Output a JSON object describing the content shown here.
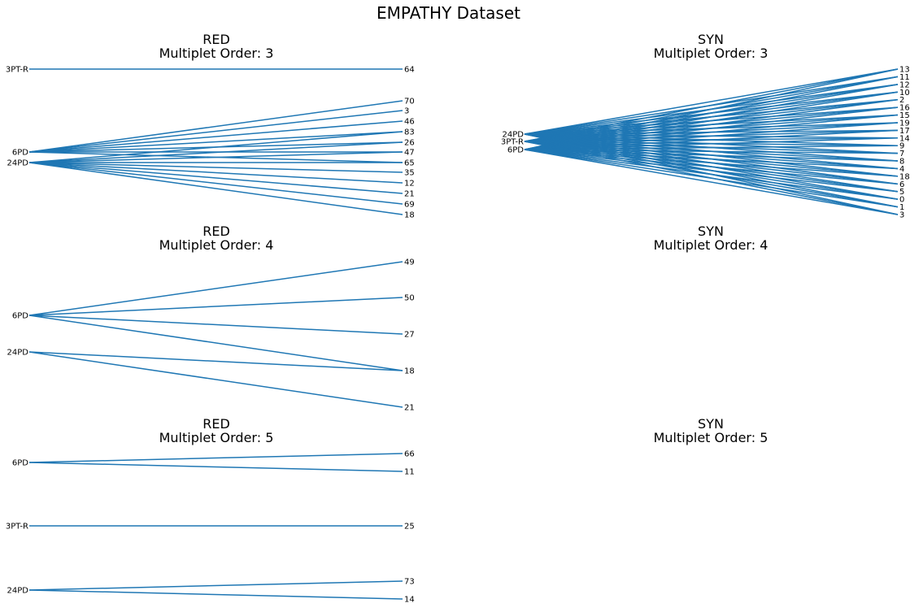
{
  "title": "EMPATHY Dataset",
  "colors": {
    "edge": "#1f77b4"
  },
  "panels": [
    {
      "id": "red-3",
      "label": "RED",
      "subtitle": "Multiplet Order: 3",
      "sources": [
        "3PT-R",
        "6PD",
        "24PD"
      ],
      "targets": [
        "64",
        "70",
        "3",
        "46",
        "83",
        "26",
        "47",
        "65",
        "35",
        "12",
        "21",
        "69",
        "18"
      ],
      "edges": [
        [
          "3PT-R",
          "64"
        ],
        [
          "6PD",
          "70"
        ],
        [
          "6PD",
          "3"
        ],
        [
          "6PD",
          "46"
        ],
        [
          "6PD",
          "83"
        ],
        [
          "6PD",
          "26"
        ],
        [
          "6PD",
          "47"
        ],
        [
          "6PD",
          "65"
        ],
        [
          "24PD",
          "83"
        ],
        [
          "24PD",
          "26"
        ],
        [
          "24PD",
          "47"
        ],
        [
          "24PD",
          "65"
        ],
        [
          "24PD",
          "35"
        ],
        [
          "24PD",
          "12"
        ],
        [
          "24PD",
          "21"
        ],
        [
          "24PD",
          "69"
        ],
        [
          "24PD",
          "18"
        ]
      ]
    },
    {
      "id": "syn-3",
      "label": "SYN",
      "subtitle": "Multiplet Order: 3",
      "sources": [
        "24PD",
        "3PT-R",
        "6PD"
      ],
      "targets": [
        "13",
        "11",
        "12",
        "10",
        "2",
        "16",
        "15",
        "19",
        "17",
        "14",
        "9",
        "7",
        "8",
        "4",
        "18",
        "6",
        "5",
        "0",
        "1",
        "3"
      ],
      "edges": "all"
    },
    {
      "id": "red-4",
      "label": "RED",
      "subtitle": "Multiplet Order: 4",
      "sources": [
        "6PD",
        "24PD"
      ],
      "targets": [
        "49",
        "50",
        "27",
        "18",
        "21"
      ],
      "edges": [
        [
          "6PD",
          "49"
        ],
        [
          "6PD",
          "50"
        ],
        [
          "6PD",
          "27"
        ],
        [
          "6PD",
          "18"
        ],
        [
          "24PD",
          "18"
        ],
        [
          "24PD",
          "21"
        ]
      ]
    },
    {
      "id": "syn-4",
      "label": "SYN",
      "subtitle": "Multiplet Order: 4",
      "sources": [],
      "targets": [],
      "edges": []
    },
    {
      "id": "red-5",
      "label": "RED",
      "subtitle": "Multiplet Order: 5",
      "sources": [
        "6PD",
        "3PT-R",
        "24PD"
      ],
      "targets": [
        "66",
        "11",
        "25",
        "73",
        "14"
      ],
      "edges": [
        [
          "6PD",
          "66"
        ],
        [
          "6PD",
          "11"
        ],
        [
          "3PT-R",
          "25"
        ],
        [
          "24PD",
          "73"
        ],
        [
          "24PD",
          "14"
        ]
      ]
    },
    {
      "id": "syn-5",
      "label": "SYN",
      "subtitle": "Multiplet Order: 5",
      "sources": [],
      "targets": [],
      "edges": []
    }
  ]
}
